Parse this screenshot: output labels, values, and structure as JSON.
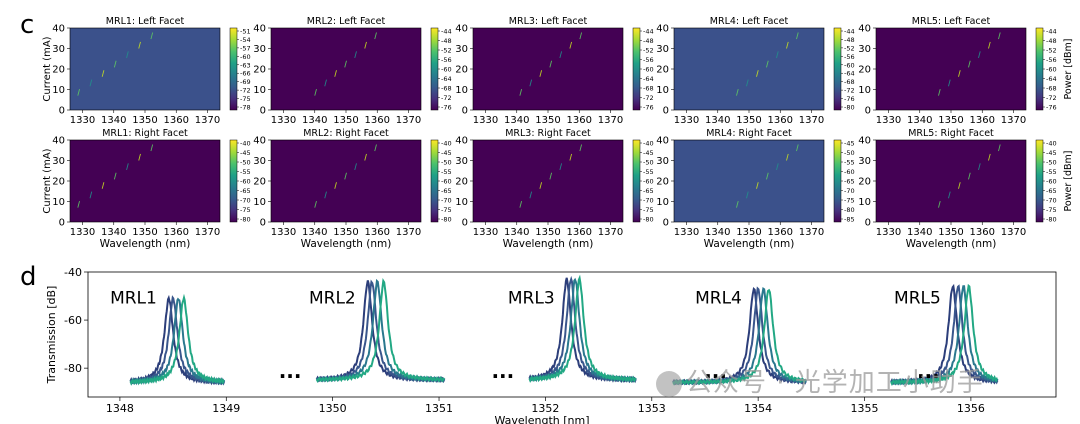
{
  "panel_labels": {
    "c": "c",
    "d": "d"
  },
  "colors": {
    "heatmap_bg_dark": "#440154",
    "heatmap_bg_mid": "#3b518b",
    "trace_colors": [
      "#2c3e7a",
      "#39568c",
      "#2a788e",
      "#22a884",
      "#7ad151"
    ]
  },
  "watermark": "公众号 · 光学加工小助手",
  "chart_data": [
    {
      "type": "heatmap",
      "panel": "c",
      "rows": 2,
      "cols": 5,
      "xlabel": "Wavelength (nm)",
      "ylabel": "Current (mA)",
      "colorbar_label": "Power [dBm]",
      "xlim": [
        1326,
        1374
      ],
      "ylim": [
        0,
        40
      ],
      "xticks": [
        1330,
        1340,
        1350,
        1360,
        1370
      ],
      "yticks": [
        0,
        10,
        20,
        30,
        40
      ],
      "subplots": [
        {
          "title": "MRL1: Left Facet",
          "cbar_ticks": [
            -51,
            -54,
            -57,
            -60,
            -63,
            -66,
            -69,
            -72,
            -75,
            -78
          ],
          "bg": "dark_blue",
          "streak_start": 1328.5
        },
        {
          "title": "MRL2: Left Facet",
          "cbar_ticks": [
            -44,
            -48,
            -52,
            -56,
            -60,
            -64,
            -68,
            -72,
            -76
          ],
          "bg": "purple",
          "streak_start": 1340
        },
        {
          "title": "MRL3: Left Facet",
          "cbar_ticks": [
            -44,
            -48,
            -52,
            -56,
            -60,
            -64,
            -68,
            -72,
            -76
          ],
          "bg": "purple",
          "streak_start": 1341
        },
        {
          "title": "MRL4: Left Facet",
          "cbar_ticks": [
            -44,
            -48,
            -52,
            -56,
            -60,
            -64,
            -68,
            -72,
            -76,
            -80
          ],
          "bg": "dark_blue",
          "streak_start": 1346
        },
        {
          "title": "MRL5: Left Facet",
          "cbar_ticks": [
            -44,
            -48,
            -52,
            -56,
            -60,
            -64,
            -68,
            -72,
            -76
          ],
          "bg": "purple",
          "streak_start": 1346
        },
        {
          "title": "MRL1: Right Facet",
          "cbar_ticks": [
            -40,
            -45,
            -50,
            -55,
            -60,
            -65,
            -70,
            -75,
            -80
          ],
          "bg": "purple",
          "streak_start": 1328.5
        },
        {
          "title": "MRL2: Right Facet",
          "cbar_ticks": [
            -40,
            -45,
            -50,
            -55,
            -60,
            -65,
            -70,
            -75,
            -80
          ],
          "bg": "purple",
          "streak_start": 1340
        },
        {
          "title": "MRL3: Right Facet",
          "cbar_ticks": [
            -40,
            -45,
            -50,
            -55,
            -60,
            -65,
            -70,
            -75,
            -80
          ],
          "bg": "purple",
          "streak_start": 1341
        },
        {
          "title": "MRL4: Right Facet",
          "cbar_ticks": [
            -45,
            -50,
            -55,
            -60,
            -65,
            -70,
            -75,
            -80,
            -85
          ],
          "bg": "dark_blue",
          "streak_start": 1346
        },
        {
          "title": "MRL5: Right Facet",
          "cbar_ticks": [
            -40,
            -45,
            -50,
            -55,
            -60,
            -65,
            -70,
            -75,
            -80
          ],
          "bg": "purple",
          "streak_start": 1346
        }
      ]
    },
    {
      "type": "line",
      "panel": "d",
      "xlabel": "Wavelength [nm]",
      "ylabel": "Transmission [dB]",
      "xlim": [
        1347.7,
        1356.8
      ],
      "ylim": [
        -92,
        -40
      ],
      "xticks": [
        1348,
        1349,
        1350,
        1351,
        1352,
        1353,
        1354,
        1355,
        1356
      ],
      "yticks": [
        -40,
        -60,
        -80
      ],
      "ellipsis": "...",
      "ellipsis_x": [
        1349.6,
        1351.6,
        1353.6,
        1355.6
      ],
      "groups": [
        {
          "label": "MRL1",
          "x_start": 1348.1,
          "x_end": 1348.98,
          "centers": [
            1348.46,
            1348.5,
            1348.55,
            1348.6
          ],
          "dip": -51,
          "baseline": -86
        },
        {
          "label": "MRL2",
          "x_start": 1349.85,
          "x_end": 1351.05,
          "centers": [
            1350.33,
            1350.37,
            1350.42,
            1350.48
          ],
          "dip": -44,
          "baseline": -85
        },
        {
          "label": "MRL3",
          "x_start": 1351.85,
          "x_end": 1352.85,
          "centers": [
            1352.2,
            1352.24,
            1352.28,
            1352.32
          ],
          "dip": -43,
          "baseline": -85
        },
        {
          "label": "MRL4",
          "x_start": 1353.2,
          "x_end": 1354.45,
          "centers": [
            1353.96,
            1354.0,
            1354.05,
            1354.1
          ],
          "dip": -47,
          "baseline": -86
        },
        {
          "label": "MRL5",
          "x_start": 1355.25,
          "x_end": 1356.25,
          "centers": [
            1355.83,
            1355.88,
            1355.93,
            1355.98
          ],
          "dip": -46,
          "baseline": -86
        }
      ]
    }
  ]
}
